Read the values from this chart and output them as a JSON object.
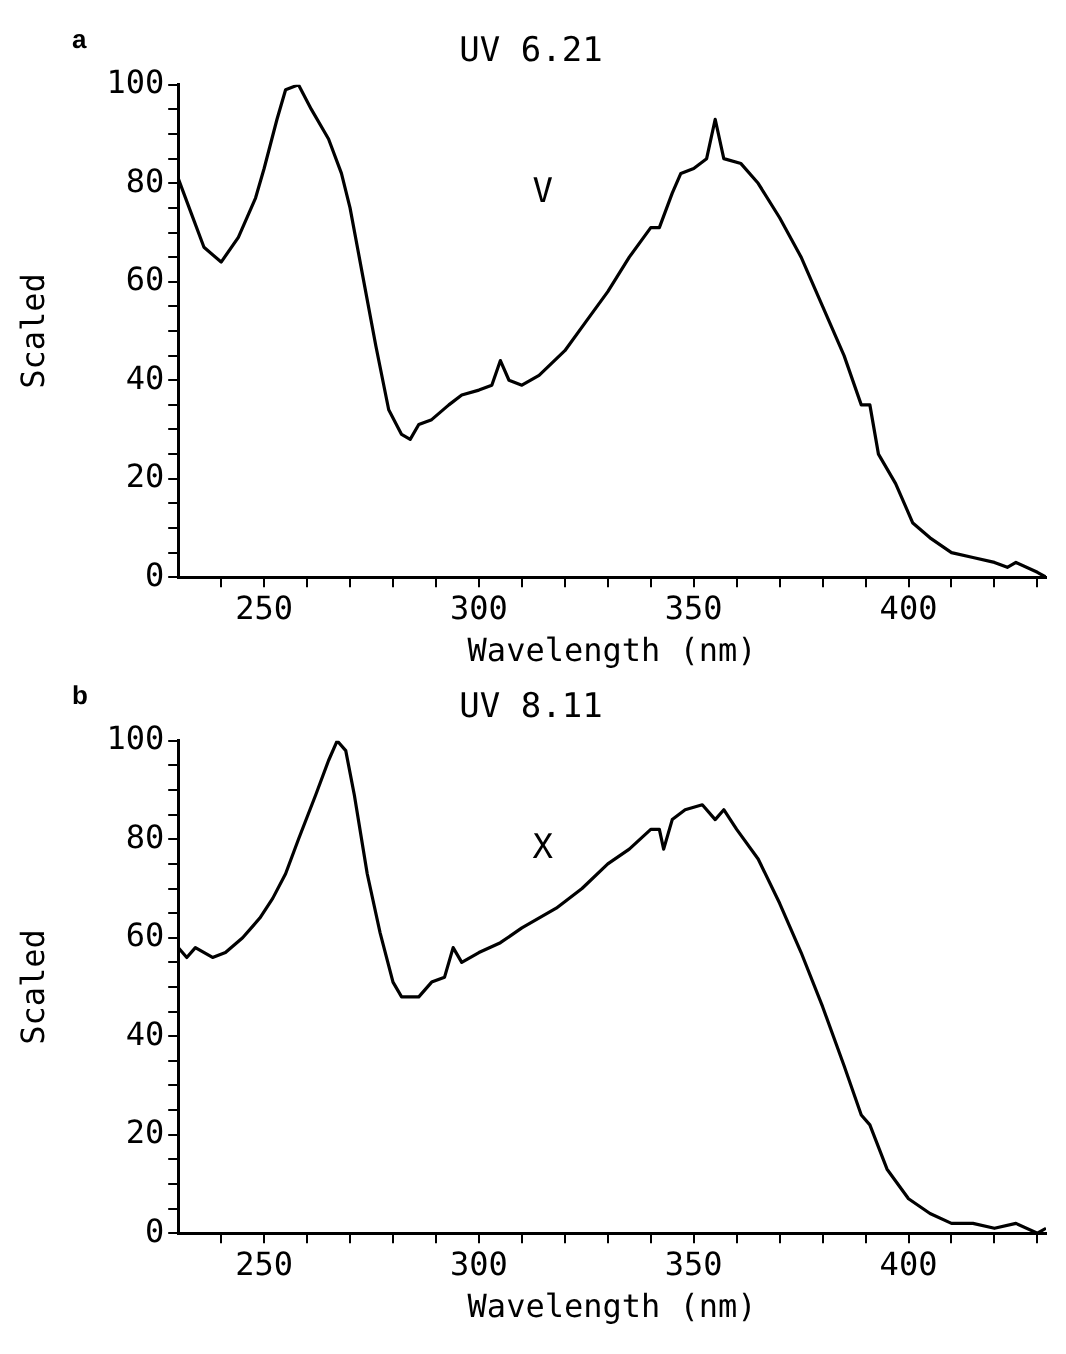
{
  "chart_data": [
    {
      "type": "line",
      "title": "UV 6.21",
      "xlabel": "Wavelength (nm)",
      "ylabel": "Scaled",
      "xlim": [
        230,
        432
      ],
      "ylim": [
        0,
        100
      ],
      "xticks": [
        {
          "value": 240,
          "label": null
        },
        250,
        {
          "value": 260,
          "label": null
        },
        {
          "value": 270,
          "label": null
        },
        {
          "value": 280,
          "label": null
        },
        {
          "value": 290,
          "label": null
        },
        300,
        {
          "value": 310,
          "label": null
        },
        {
          "value": 320,
          "label": null
        },
        {
          "value": 330,
          "label": null
        },
        {
          "value": 340,
          "label": null
        },
        350,
        {
          "value": 360,
          "label": null
        },
        {
          "value": 370,
          "label": null
        },
        {
          "value": 380,
          "label": null
        },
        {
          "value": 390,
          "label": null
        },
        400,
        {
          "value": 410,
          "label": null
        },
        {
          "value": 420,
          "label": null
        },
        {
          "value": 430,
          "label": null
        }
      ],
      "yticks": [
        0,
        {
          "value": 5,
          "label": null
        },
        {
          "value": 10,
          "label": null
        },
        {
          "value": 15,
          "label": null
        },
        20,
        {
          "value": 25,
          "label": null
        },
        {
          "value": 30,
          "label": null
        },
        {
          "value": 35,
          "label": null
        },
        40,
        {
          "value": 45,
          "label": null
        },
        {
          "value": 50,
          "label": null
        },
        {
          "value": 55,
          "label": null
        },
        60,
        {
          "value": 65,
          "label": null
        },
        {
          "value": 70,
          "label": null
        },
        {
          "value": 75,
          "label": null
        },
        80,
        {
          "value": 85,
          "label": null
        },
        {
          "value": 90,
          "label": null
        },
        {
          "value": 95,
          "label": null
        },
        100
      ],
      "grid": false,
      "legend": false,
      "marker": "none",
      "line_style": "solid",
      "annotations": [
        "a",
        "V"
      ],
      "series": [
        {
          "color": "#000000",
          "x": [
            230,
            233,
            236,
            240,
            244,
            248,
            250,
            253,
            255,
            258,
            261,
            265,
            268,
            270,
            273,
            276,
            279,
            282,
            284,
            286,
            289,
            293,
            296,
            300,
            303,
            305,
            307,
            310,
            314,
            320,
            325,
            330,
            335,
            340,
            342,
            345,
            347,
            350,
            353,
            355,
            357,
            361,
            365,
            370,
            375,
            380,
            385,
            389,
            391,
            393,
            397,
            401,
            405,
            410,
            415,
            420,
            423,
            425,
            430,
            432
          ],
          "values": [
            81,
            74,
            67,
            64,
            69,
            77,
            83,
            93,
            99,
            100,
            95,
            89,
            82,
            75,
            61,
            47,
            34,
            29,
            28,
            31,
            32,
            35,
            37,
            38,
            39,
            44,
            40,
            39,
            41,
            46,
            52,
            58,
            65,
            71,
            71,
            78,
            82,
            83,
            85,
            93,
            85,
            84,
            80,
            73,
            65,
            55,
            45,
            35,
            35,
            25,
            19,
            11,
            8,
            5,
            4,
            3,
            2,
            3,
            1,
            0
          ]
        }
      ]
    },
    {
      "type": "line",
      "title": "UV 8.11",
      "xlabel": "Wavelength (nm)",
      "ylabel": "Scaled",
      "xlim": [
        230,
        432
      ],
      "ylim": [
        0,
        100
      ],
      "xticks": [
        {
          "value": 240,
          "label": null
        },
        250,
        {
          "value": 260,
          "label": null
        },
        {
          "value": 270,
          "label": null
        },
        {
          "value": 280,
          "label": null
        },
        {
          "value": 290,
          "label": null
        },
        300,
        {
          "value": 310,
          "label": null
        },
        {
          "value": 320,
          "label": null
        },
        {
          "value": 330,
          "label": null
        },
        {
          "value": 340,
          "label": null
        },
        350,
        {
          "value": 360,
          "label": null
        },
        {
          "value": 370,
          "label": null
        },
        {
          "value": 380,
          "label": null
        },
        {
          "value": 390,
          "label": null
        },
        400,
        {
          "value": 410,
          "label": null
        },
        {
          "value": 420,
          "label": null
        },
        {
          "value": 430,
          "label": null
        }
      ],
      "yticks": [
        0,
        {
          "value": 5,
          "label": null
        },
        {
          "value": 10,
          "label": null
        },
        {
          "value": 15,
          "label": null
        },
        20,
        {
          "value": 25,
          "label": null
        },
        {
          "value": 30,
          "label": null
        },
        {
          "value": 35,
          "label": null
        },
        40,
        {
          "value": 45,
          "label": null
        },
        {
          "value": 50,
          "label": null
        },
        {
          "value": 55,
          "label": null
        },
        60,
        {
          "value": 65,
          "label": null
        },
        {
          "value": 70,
          "label": null
        },
        {
          "value": 75,
          "label": null
        },
        80,
        {
          "value": 85,
          "label": null
        },
        {
          "value": 90,
          "label": null
        },
        {
          "value": 95,
          "label": null
        },
        100
      ],
      "grid": false,
      "legend": false,
      "marker": "none",
      "line_style": "solid",
      "annotations": [
        "b",
        "X"
      ],
      "series": [
        {
          "color": "#000000",
          "x": [
            230,
            232,
            234,
            238,
            241,
            245,
            249,
            252,
            255,
            258,
            262,
            265,
            267,
            269,
            271,
            274,
            277,
            280,
            282,
            286,
            289,
            292,
            294,
            296,
            300,
            305,
            310,
            318,
            324,
            330,
            335,
            340,
            342,
            343,
            345,
            348,
            352,
            355,
            357,
            360,
            365,
            370,
            375,
            380,
            385,
            389,
            391,
            395,
            400,
            405,
            410,
            415,
            420,
            425,
            430,
            432
          ],
          "values": [
            58,
            56,
            58,
            56,
            57,
            60,
            64,
            68,
            73,
            80,
            89,
            96,
            100,
            98,
            89,
            73,
            61,
            51,
            48,
            48,
            51,
            52,
            58,
            55,
            57,
            59,
            62,
            66,
            70,
            75,
            78,
            82,
            82,
            78,
            84,
            86,
            87,
            84,
            86,
            82,
            76,
            67,
            57,
            46,
            34,
            24,
            22,
            13,
            7,
            4,
            2,
            2,
            1,
            2,
            0,
            1
          ]
        }
      ]
    }
  ]
}
